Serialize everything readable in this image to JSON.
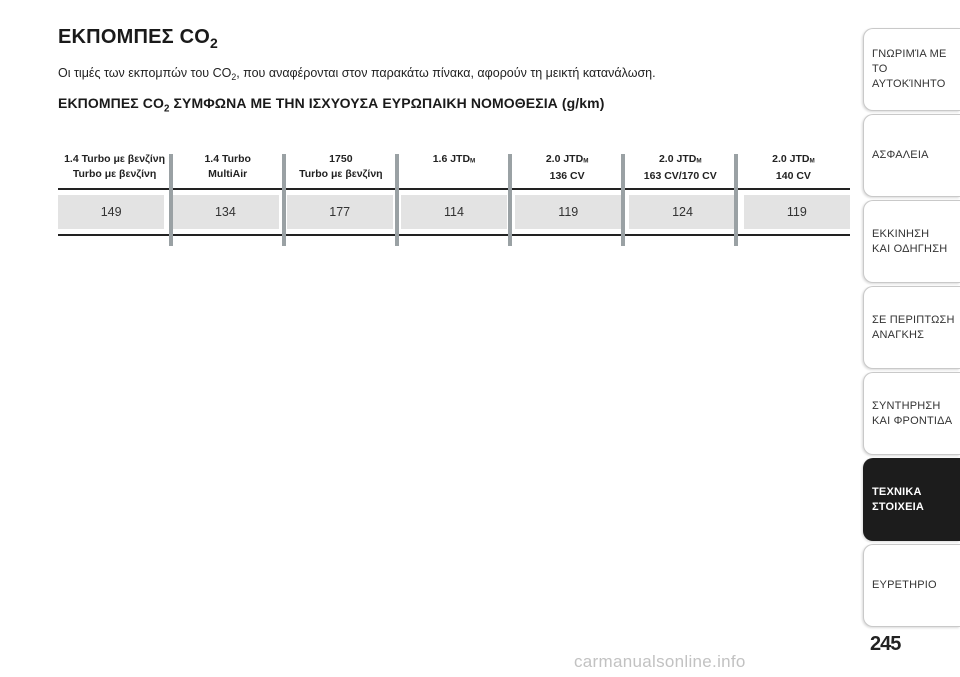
{
  "title": {
    "text": "ΕΚΠΟΜΠΕΣ CO",
    "sub": "2"
  },
  "intro": {
    "before": "Οι τιμές των εκπομπών του CO",
    "sub": "2",
    "after": ", που αναφέρονται στον παρακάτω πίνακα, αφορούν τη μεικτή κατανάλωση."
  },
  "subtitle": {
    "before": "ΕΚΠΟΜΠΕΣ CO",
    "sub": "2",
    "after": " ΣΥΜΦΩΝΑ ΜΕ ΤΗΝ ΙΣΧΥΟΥΣΑ ΕΥΡΩΠΑΙΚΗ ΝΟΜΟΘΕΣΙΑ (g/km)"
  },
  "table": {
    "columns": [
      {
        "line1": "1.4 Turbo με βενζίνη",
        "line1_sub": "",
        "line2": "Turbo με βενζίνη",
        "value": "149"
      },
      {
        "line1": "1.4 Turbo",
        "line1_sub": "",
        "line2": "MultiAir",
        "value": "134"
      },
      {
        "line1": "1750",
        "line1_sub": "",
        "line2": "Turbo με βενζίνη",
        "value": "177"
      },
      {
        "line1": "1.6 JTD",
        "line1_sub": "M",
        "line2": "",
        "value": "114"
      },
      {
        "line1": "2.0 JTD",
        "line1_sub": "M",
        "line2": "136 CV",
        "value": "119"
      },
      {
        "line1": "2.0 JTD",
        "line1_sub": "M",
        "line2": "163 CV/170 CV",
        "value": "124"
      },
      {
        "line1": "2.0 JTD",
        "line1_sub": "M",
        "line2": "140 CV",
        "value": "119"
      }
    ]
  },
  "sidebar": {
    "tabs": [
      {
        "line1": "ΓΝΩΡΙΜΊΑ ΜΕ ΤΟ",
        "line2": "ΑΥΤΟΚΊΝΗΤΟ"
      },
      {
        "line1": "ΑΣΦΑΛΕΙΑ",
        "line2": ""
      },
      {
        "line1": "ΕΚΚΙΝΗΣΗ",
        "line2": "ΚΑΙ ΟΔΗΓΗΣΗ"
      },
      {
        "line1": "ΣΕ ΠΕΡΙΠΤΩΣΗ",
        "line2": "ΑΝΑΓΚΗΣ"
      },
      {
        "line1": "ΣΥΝΤΗΡΗΣΗ",
        "line2": "ΚΑΙ ΦΡΟΝΤΙΔΑ"
      },
      {
        "line1": "ΤΕΧΝΙΚΑ",
        "line2": "ΣΤΟΙΧΕΙΑ"
      },
      {
        "line1": "ΕΥΡΕΤΗΡΙΟ",
        "line2": ""
      }
    ],
    "active_index": 5
  },
  "page_number": "245",
  "watermark": "carmanualsonline.info"
}
